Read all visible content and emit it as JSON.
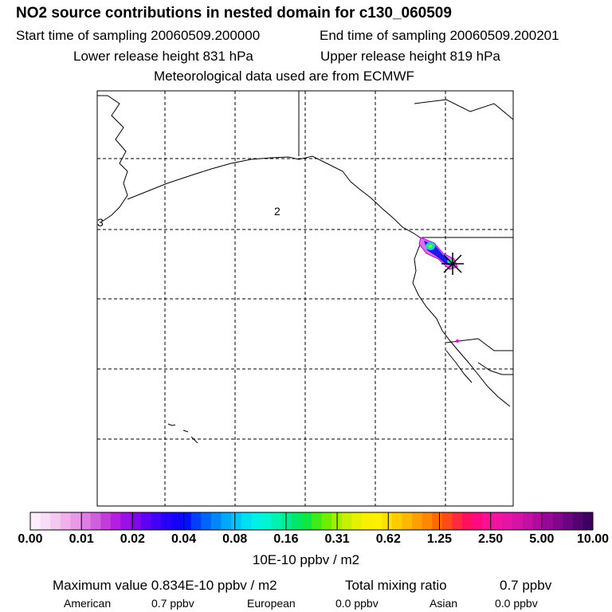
{
  "header": {
    "title": "NO2 source contributions in nested domain for c130_060509",
    "start_time": "Start time of sampling 20060509.200000",
    "end_time": "End time of sampling 20060509.200201",
    "lower_height": "Lower release height  831 hPa",
    "upper_height": "Upper release height  819 hPa",
    "met_data": "Meteorological data used are from ECMWF"
  },
  "map": {
    "labels": {
      "left_edge": "3",
      "mid": "2"
    }
  },
  "colorbar": {
    "ticks": [
      "0.00",
      "0.01",
      "0.02",
      "0.04",
      "0.08",
      "0.16",
      "0.31",
      "0.62",
      "1.25",
      "2.50",
      "5.00",
      "10.00"
    ],
    "colors": [
      "#fdeefb",
      "#f9dcf6",
      "#f4c8f1",
      "#efb0ec",
      "#e89ae6",
      "#dd7fe1",
      "#cf60dd",
      "#c33cdb",
      "#b31ee0",
      "#9b10e6",
      "#8008ec",
      "#6000f0",
      "#4400f5",
      "#2800f8",
      "#1500fa",
      "#0010fa",
      "#0040fa",
      "#0066fa",
      "#0088fa",
      "#00a8fa",
      "#00c6f8",
      "#00e0f0",
      "#00f0e6",
      "#00f5d0",
      "#00f2b0",
      "#00ec90",
      "#00e868",
      "#10e840",
      "#40ea18",
      "#70ee00",
      "#a0f000",
      "#c8f000",
      "#e8f000",
      "#f8f000",
      "#fff000",
      "#ffe000",
      "#ffcc00",
      "#ffb800",
      "#ffa000",
      "#ff8800",
      "#ff6a00",
      "#ff4a1a",
      "#ff2a40",
      "#ff1060",
      "#ff0a80",
      "#fa1094",
      "#f014a0",
      "#e414a4",
      "#d414a4",
      "#c210a2",
      "#ae0c9c",
      "#980896",
      "#82068c",
      "#6a0480",
      "#540270",
      "#3e0060"
    ],
    "units": "10E-10 ppbv / m2"
  },
  "stats": {
    "max_value": "Maximum value  0.834E-10 ppbv / m2",
    "total_mixing": "Total mixing ratio",
    "total_value": "0.7 ppbv",
    "american_label": "American",
    "american_value": "0.7 ppbv",
    "european_label": "European",
    "european_value": "0.0 ppbv",
    "asian_label": "Asian",
    "asian_value": "0.0 ppbv"
  }
}
